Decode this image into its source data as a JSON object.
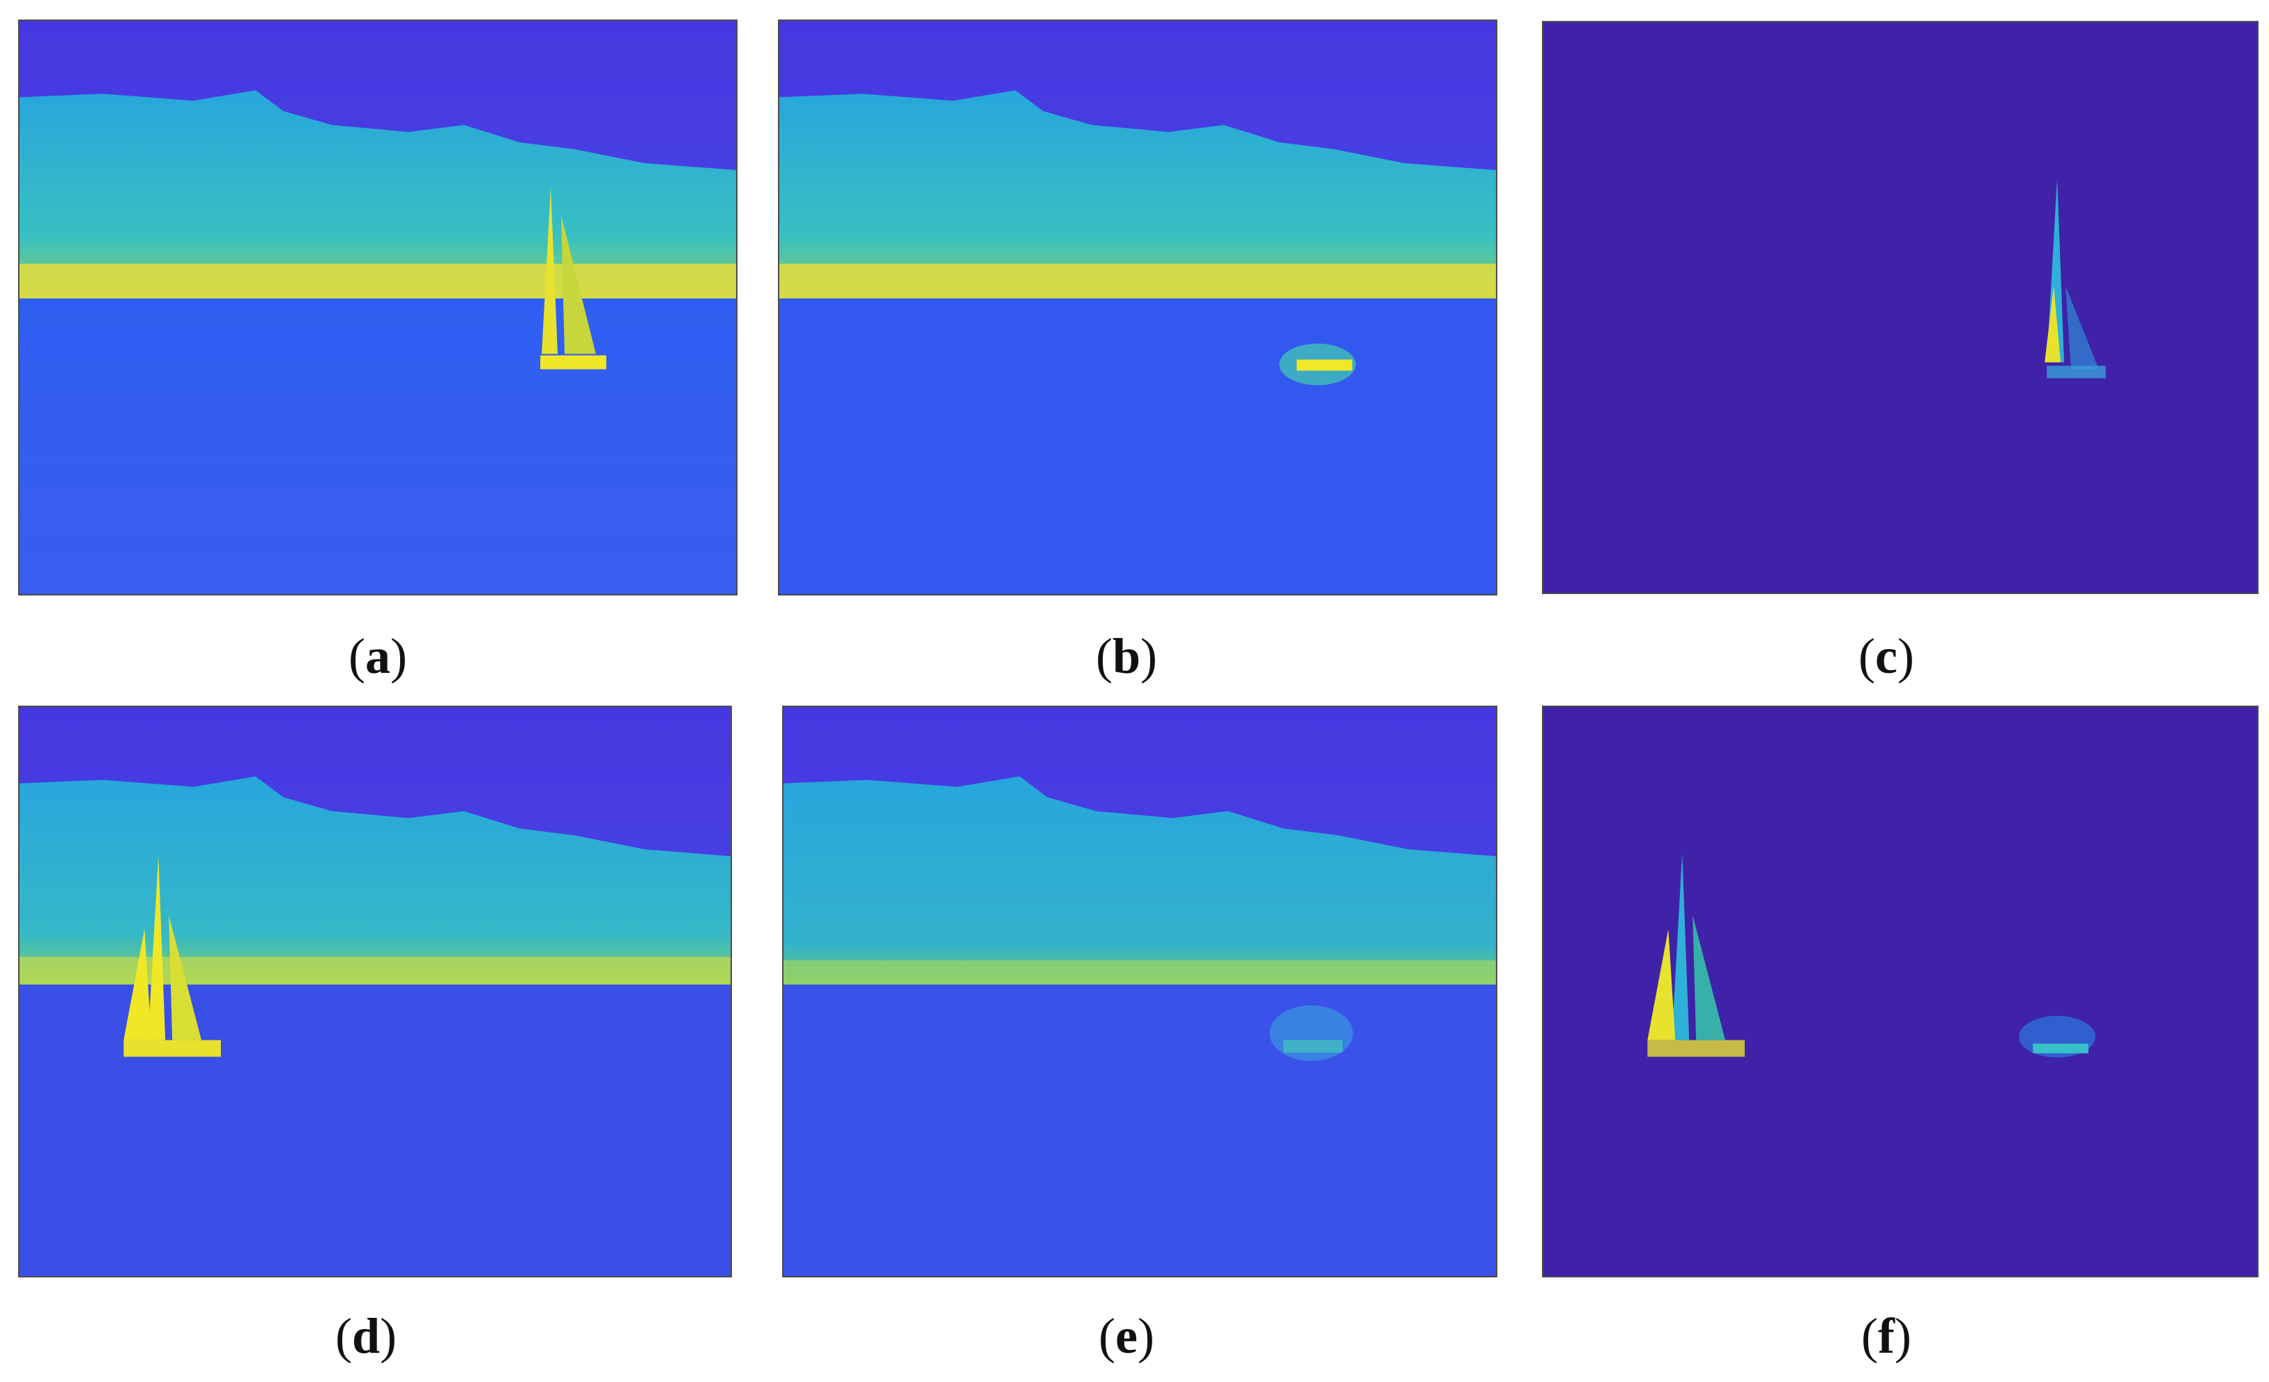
{
  "figure": {
    "panels": [
      {
        "id": "a",
        "label_open": "(",
        "label_letter": "a",
        "label_close": ")",
        "colormap": "scene"
      },
      {
        "id": "b",
        "label_open": "(",
        "label_letter": "b",
        "label_close": ")",
        "colormap": "scene"
      },
      {
        "id": "c",
        "label_open": "(",
        "label_letter": "c",
        "label_close": ")",
        "colormap": "residual"
      },
      {
        "id": "d",
        "label_open": "(",
        "label_letter": "d",
        "label_close": ")",
        "colormap": "scene"
      },
      {
        "id": "e",
        "label_open": "(",
        "label_letter": "e",
        "label_close": ")",
        "colormap": "scene"
      },
      {
        "id": "f",
        "label_open": "(",
        "label_letter": "f",
        "label_close": ")",
        "colormap": "residual"
      }
    ],
    "colors": {
      "sky": "#4a3fe0",
      "hill": "#2fb0d8",
      "shore": "#e8e03a",
      "water": "#3a57f0",
      "residual_background": "#3f22a8",
      "highlight": "#f2ec2a",
      "frame": "#4a4a4a"
    }
  }
}
